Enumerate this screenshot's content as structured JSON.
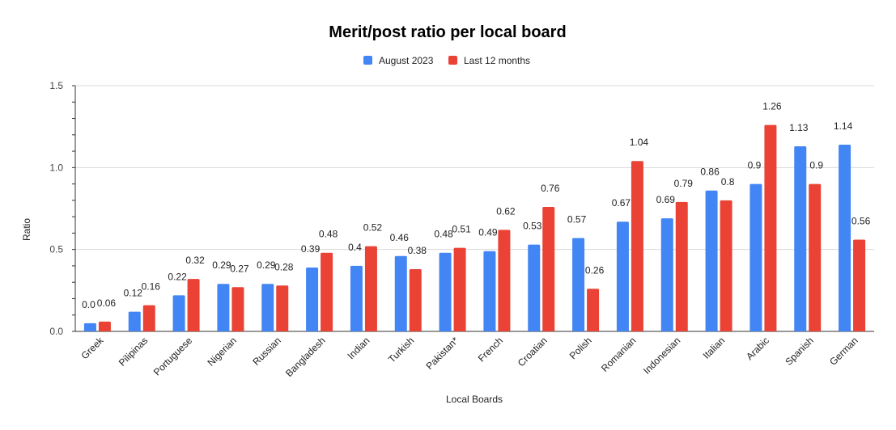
{
  "chart_data": {
    "type": "bar",
    "title": "Merit/post ratio per local board",
    "xlabel": "Local Boards",
    "ylabel": "Ratio",
    "ylim": [
      0,
      1.5
    ],
    "yticks": [
      "0.0",
      "0.5",
      "1.0",
      "1.5"
    ],
    "grid": true,
    "legend_position": "top",
    "categories": [
      "Greek",
      "Pilipinas",
      "Portuguese",
      "Nigerian",
      "Russian",
      "Bangladesh",
      "Indian",
      "Turkish",
      "Pakistan*",
      "French",
      "Croatian",
      "Polish",
      "Romanian",
      "Indonesian",
      "Italian",
      "Arabic",
      "Spanish",
      "German"
    ],
    "series": [
      {
        "name": "August 2023",
        "color": "#4285F4",
        "values": [
          0.05,
          0.12,
          0.22,
          0.29,
          0.29,
          0.39,
          0.4,
          0.46,
          0.48,
          0.49,
          0.53,
          0.57,
          0.67,
          0.69,
          0.86,
          0.9,
          1.13,
          1.14
        ],
        "labels": [
          "0.0",
          "0.12",
          "0.22",
          "0.29",
          "0.29",
          "0.39",
          "0.4",
          "0.46",
          "0.48",
          "0.49",
          "0.53",
          "0.57",
          "0.67",
          "0.69",
          "0.86",
          "0.9",
          "1.13",
          "1.14"
        ]
      },
      {
        "name": "Last 12 months",
        "color": "#EA4335",
        "values": [
          0.06,
          0.16,
          0.32,
          0.27,
          0.28,
          0.48,
          0.52,
          0.38,
          0.51,
          0.62,
          0.76,
          0.26,
          1.04,
          0.79,
          0.8,
          1.26,
          0.9,
          0.56
        ],
        "labels": [
          "0.06",
          "0.16",
          "0.32",
          "0.27",
          "0.28",
          "0.48",
          "0.52",
          "0.38",
          "0.51",
          "0.62",
          "0.76",
          "0.26",
          "1.04",
          "0.79",
          "0.8",
          "1.26",
          "0.9",
          "0.56"
        ]
      }
    ]
  }
}
